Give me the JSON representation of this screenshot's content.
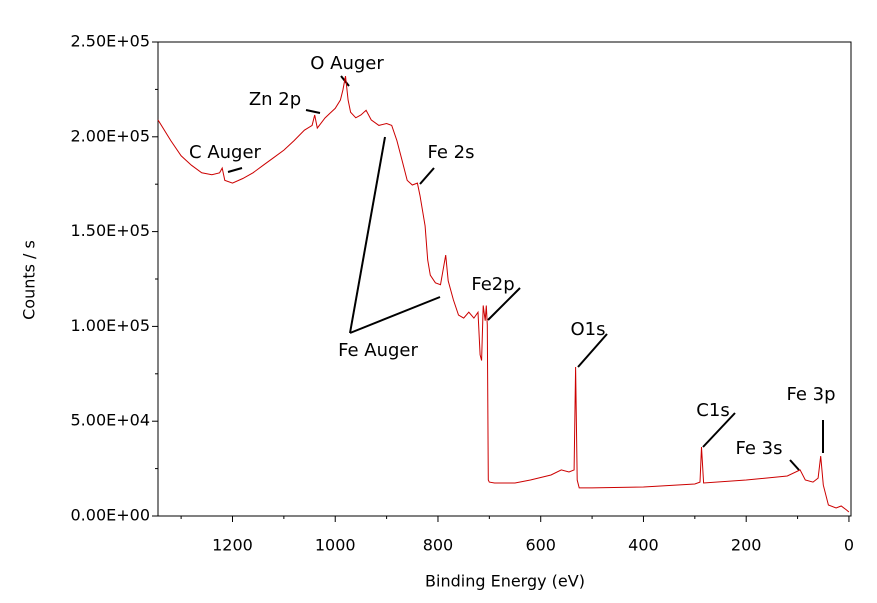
{
  "chart_data": {
    "type": "line",
    "x_label": "Binding Energy (eV)",
    "y_label": "Counts / s",
    "xlim": [
      1345,
      -4
    ],
    "ylim": [
      0,
      250000
    ],
    "xticks": [
      1200,
      1000,
      800,
      600,
      400,
      200,
      0
    ],
    "xminorticks": [
      1300,
      1100,
      900,
      700,
      500,
      300,
      100
    ],
    "yticks": [
      {
        "value": 0,
        "label": "0.00E+00"
      },
      {
        "value": 50000,
        "label": "5.00E+04"
      },
      {
        "value": 100000,
        "label": "1.00E+05"
      },
      {
        "value": 150000,
        "label": "1.50E+05"
      },
      {
        "value": 200000,
        "label": "2.00E+05"
      },
      {
        "value": 250000,
        "label": "2.50E+05"
      }
    ],
    "yminorticks": [
      25000,
      75000,
      125000,
      175000,
      225000
    ],
    "annotations": [
      "O Auger",
      "Zn 2p",
      "C Auger",
      "Fe 2s",
      "Fe2p",
      "O1s",
      "Fe Auger",
      "C1s",
      "Fe 3p",
      "Fe 3s"
    ],
    "x": [
      1345,
      1320,
      1300,
      1280,
      1260,
      1240,
      1225,
      1220,
      1215,
      1200,
      1180,
      1160,
      1140,
      1120,
      1100,
      1080,
      1060,
      1045,
      1040,
      1035,
      1020,
      1010,
      1000,
      990,
      985,
      980,
      975,
      970,
      960,
      950,
      940,
      930,
      915,
      900,
      890,
      880,
      870,
      860,
      850,
      840,
      835,
      825,
      820,
      815,
      805,
      795,
      785,
      780,
      770,
      760,
      750,
      740,
      730,
      722,
      718,
      715,
      712,
      708,
      706,
      704,
      702,
      700,
      690,
      650,
      620,
      580,
      560,
      545,
      535,
      532,
      529,
      525,
      500,
      400,
      300,
      290,
      287,
      283,
      200,
      120,
      95,
      85,
      70,
      60,
      55,
      50,
      40,
      25,
      15,
      5,
      0
    ],
    "series": [
      {
        "color": "#cc0000",
        "values": [
          208900,
          198000,
          190000,
          185000,
          181000,
          180000,
          181000,
          183500,
          177000,
          175600,
          178000,
          181000,
          185000,
          189000,
          193000,
          198000,
          203500,
          206000,
          211500,
          204600,
          209900,
          212500,
          215000,
          219400,
          224700,
          232000,
          219400,
          213000,
          210000,
          211500,
          214000,
          208900,
          206000,
          207000,
          206000,
          198000,
          187700,
          177000,
          174600,
          175600,
          169000,
          153000,
          135000,
          127000,
          123000,
          122000,
          137600,
          124000,
          114000,
          106000,
          104400,
          107500,
          104400,
          107500,
          85000,
          82000,
          111000,
          103000,
          111000,
          100700,
          19000,
          17900,
          17400,
          17400,
          19000,
          21600,
          24300,
          23200,
          24300,
          78600,
          19000,
          14800,
          14800,
          15300,
          16900,
          17900,
          36400,
          17400,
          19000,
          21100,
          24300,
          19000,
          17900,
          20000,
          31600,
          16300,
          5800,
          4200,
          5300,
          3200,
          2100
        ]
      }
    ]
  }
}
